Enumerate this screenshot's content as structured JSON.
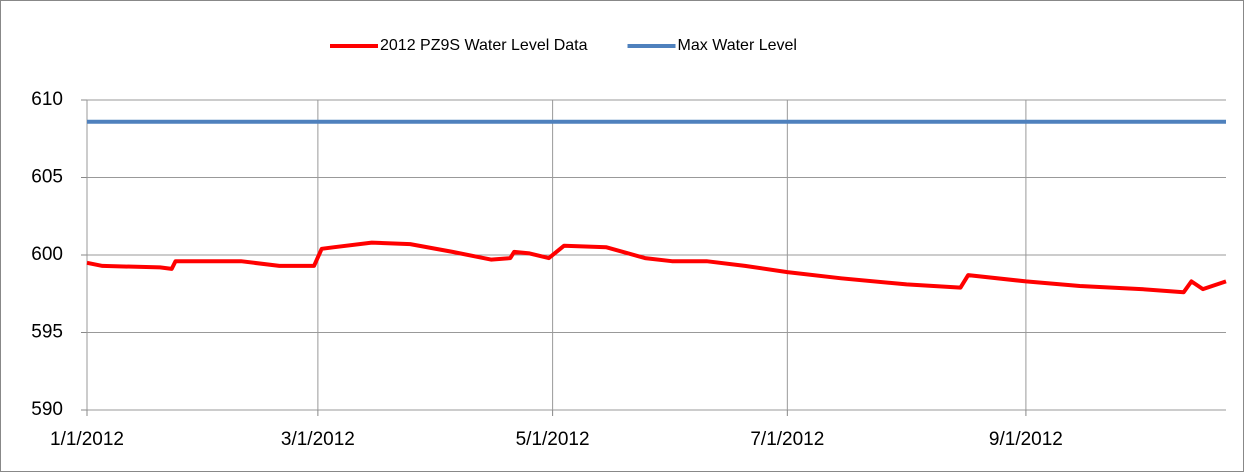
{
  "chart_data": {
    "type": "line",
    "x": [
      "2012-01-01",
      "2012-01-05",
      "2012-01-20",
      "2012-01-23",
      "2012-01-24",
      "2012-02-10",
      "2012-02-20",
      "2012-02-29",
      "2012-03-02",
      "2012-03-05",
      "2012-03-15",
      "2012-03-25",
      "2012-04-05",
      "2012-04-15",
      "2012-04-20",
      "2012-04-21",
      "2012-04-25",
      "2012-04-30",
      "2012-05-04",
      "2012-05-15",
      "2012-05-25",
      "2012-06-01",
      "2012-06-10",
      "2012-06-20",
      "2012-07-01",
      "2012-07-15",
      "2012-08-01",
      "2012-08-15",
      "2012-08-17",
      "2012-09-01",
      "2012-09-15",
      "2012-10-01",
      "2012-10-12",
      "2012-10-14",
      "2012-10-17",
      "2012-10-23"
    ],
    "series": [
      {
        "name": "2012 PZ9S Water Level Data",
        "color": "#ff0000",
        "values": [
          599.5,
          599.3,
          599.2,
          599.1,
          599.6,
          599.6,
          599.3,
          599.3,
          600.4,
          600.5,
          600.8,
          600.7,
          600.2,
          599.7,
          599.8,
          600.2,
          600.1,
          599.8,
          600.6,
          600.5,
          599.8,
          599.6,
          599.6,
          599.3,
          598.9,
          598.5,
          598.1,
          597.9,
          598.7,
          598.3,
          598.0,
          597.8,
          597.6,
          598.3,
          597.8,
          598.3
        ]
      },
      {
        "name": "Max Water Level",
        "color": "#4f81bd",
        "values": [
          608.6,
          608.6,
          608.6,
          608.6,
          608.6,
          608.6,
          608.6,
          608.6,
          608.6,
          608.6,
          608.6,
          608.6,
          608.6,
          608.6,
          608.6,
          608.6,
          608.6,
          608.6,
          608.6,
          608.6,
          608.6,
          608.6,
          608.6,
          608.6,
          608.6,
          608.6,
          608.6,
          608.6,
          608.6,
          608.6,
          608.6,
          608.6,
          608.6,
          608.6,
          608.6,
          608.6
        ]
      }
    ],
    "xlim": [
      "2012-01-01",
      "2012-10-23"
    ],
    "xticks": [
      {
        "value": "2012-01-01",
        "label": "1/1/2012"
      },
      {
        "value": "2012-03-01",
        "label": "3/1/2012"
      },
      {
        "value": "2012-05-01",
        "label": "5/1/2012"
      },
      {
        "value": "2012-07-01",
        "label": "7/1/2012"
      },
      {
        "value": "2012-09-01",
        "label": "9/1/2012"
      }
    ],
    "ylim": [
      590,
      610
    ],
    "yticks": [
      590,
      595,
      600,
      605,
      610
    ],
    "grid": true,
    "legend": "top"
  }
}
